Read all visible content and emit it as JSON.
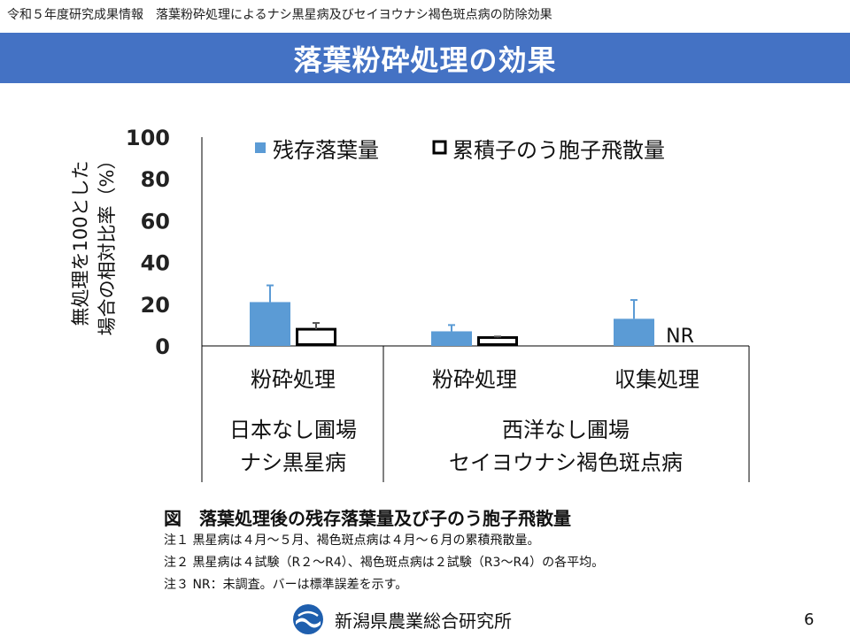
{
  "header": {
    "subtitle": "令和５年度研究成果情報　落葉粉砕処理によるナシ黒星病及びセイヨウナシ褐色斑点病の防除効果"
  },
  "slide": {
    "title": "落葉粉砕処理の効果",
    "page_number": "6"
  },
  "chart_data": {
    "type": "bar",
    "ylabel_line1": "無処理を100とした",
    "ylabel_line2": "場合の相対比率（%）",
    "ylim": [
      0,
      100
    ],
    "yticks": [
      "0",
      "20",
      "40",
      "60",
      "80",
      "100"
    ],
    "categories": [
      "粉砕処理",
      "粉砕処理",
      "収集処理"
    ],
    "groups": [
      {
        "name_line1": "日本なし圃場",
        "name_line2": "ナシ黒星病",
        "categories": [
          0
        ]
      },
      {
        "name_line1": "西洋なし圃場",
        "name_line2": "セイヨウナシ褐色斑点病",
        "categories": [
          1,
          2
        ]
      }
    ],
    "series": [
      {
        "name": "残存落葉量",
        "style": "filled",
        "color": "#5b9bd5",
        "values": [
          21,
          7,
          13
        ],
        "errors": [
          8,
          3,
          9
        ]
      },
      {
        "name": "累積子のう胞子飛散量",
        "style": "outline",
        "color": "#000000",
        "values": [
          8,
          4,
          null
        ],
        "errors": [
          3,
          0.5,
          null
        ]
      }
    ],
    "annotations": [
      {
        "category": 2,
        "series": 1,
        "text": "NR"
      }
    ],
    "legend_position": "top"
  },
  "caption": {
    "title": "図　落葉処理後の残存落葉量及び子のう胞子飛散量",
    "notes": [
      "注１ 黒星病は４月～５月、褐色斑点病は４月～６月の累積飛散量。",
      "注２ 黒星病は４試験（R２～R4）、褐色斑点病は２試験（R3～R4）の各平均。",
      "注３ NR：未調査。バーは標準誤差を示す。"
    ]
  },
  "footer": {
    "organization": "新潟県農業総合研究所",
    "logo_icon": "prefecture-emblem-icon"
  }
}
